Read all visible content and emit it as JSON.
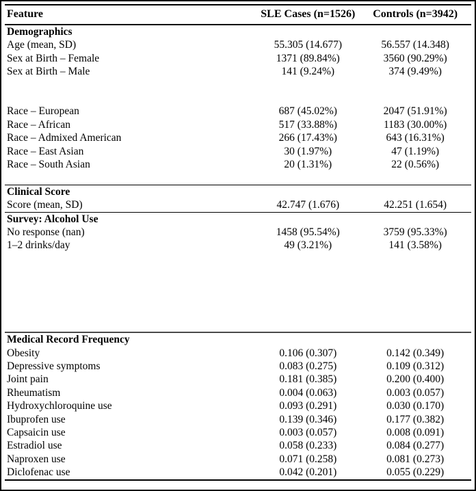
{
  "table": {
    "columns": [
      {
        "label": "Feature"
      },
      {
        "label": "SLE Cases (n=1526)"
      },
      {
        "label": "Controls (n=3942)"
      }
    ],
    "sections": [
      {
        "title": "Demographics",
        "rule": "none",
        "rows": [
          {
            "feature": "Age (mean, SD)",
            "sle": "55.305 (14.677)",
            "controls": "56.557 (14.348)"
          },
          {
            "feature": "Sex at Birth – Female",
            "sle": "1371 (89.84%)",
            "controls": "3560 (90.29%)"
          },
          {
            "feature": "Sex at Birth – Male",
            "sle": "141 (9.24%)",
            "controls": "374 (9.49%)"
          },
          {
            "feature": "",
            "sle": "",
            "controls": ""
          },
          {
            "feature": "",
            "sle": "",
            "controls": ""
          },
          {
            "feature": "Race – European",
            "sle": "687 (45.02%)",
            "controls": "2047 (51.91%)"
          },
          {
            "feature": "Race – African",
            "sle": "517 (33.88%)",
            "controls": "1183 (30.00%)"
          },
          {
            "feature": "Race – Admixed American",
            "sle": "266 (17.43%)",
            "controls": "643 (16.31%)"
          },
          {
            "feature": "Race – East Asian",
            "sle": "30 (1.97%)",
            "controls": "47 (1.19%)"
          },
          {
            "feature": "Race – South Asian",
            "sle": "20 (1.31%)",
            "controls": "22 (0.56%)"
          },
          {
            "feature": "",
            "sle": "",
            "controls": ""
          }
        ]
      },
      {
        "title": "Clinical Score",
        "rule": "single",
        "rows": [
          {
            "feature": "Score (mean, SD)",
            "sle": "42.747 (1.676)",
            "controls": "42.251 (1.654)"
          }
        ]
      },
      {
        "title": "Survey: Alcohol Use",
        "rule": "single",
        "rows": [
          {
            "feature": "No response (nan)",
            "sle": "1458 (95.54%)",
            "controls": "3759 (95.33%)"
          },
          {
            "feature": "1–2 drinks/day",
            "sle": "49 (3.21%)",
            "controls": "141 (3.58%)"
          },
          {
            "feature": "",
            "sle": "",
            "controls": ""
          },
          {
            "feature": "",
            "sle": "",
            "controls": ""
          },
          {
            "feature": "",
            "sle": "",
            "controls": ""
          },
          {
            "feature": "",
            "sle": "",
            "controls": ""
          },
          {
            "feature": "",
            "sle": "",
            "controls": ""
          },
          {
            "feature": "",
            "sle": "",
            "controls": ""
          }
        ]
      },
      {
        "title": "Medical Record Frequency",
        "rule": "heavy",
        "rows": [
          {
            "feature": "Obesity",
            "sle": "0.106 (0.307)",
            "controls": "0.142 (0.349)"
          },
          {
            "feature": "Depressive symptoms",
            "sle": "0.083 (0.275)",
            "controls": "0.109 (0.312)"
          },
          {
            "feature": "Joint pain",
            "sle": "0.181 (0.385)",
            "controls": "0.200 (0.400)"
          },
          {
            "feature": "Rheumatism",
            "sle": "0.004 (0.063)",
            "controls": "0.003 (0.057)"
          },
          {
            "feature": "Hydroxychloroquine use",
            "sle": "0.093 (0.291)",
            "controls": "0.030 (0.170)"
          },
          {
            "feature": "Ibuprofen use",
            "sle": "0.139 (0.346)",
            "controls": "0.177 (0.382)"
          },
          {
            "feature": "Capsaicin use",
            "sle": "0.003 (0.057)",
            "controls": "0.008 (0.091)"
          },
          {
            "feature": "Estradiol use",
            "sle": "0.058 (0.233)",
            "controls": "0.084 (0.277)"
          },
          {
            "feature": "Naproxen use",
            "sle": "0.071 (0.258)",
            "controls": "0.081 (0.273)"
          },
          {
            "feature": "Diclofenac use",
            "sle": "0.042 (0.201)",
            "controls": "0.055 (0.229)"
          }
        ]
      }
    ]
  }
}
